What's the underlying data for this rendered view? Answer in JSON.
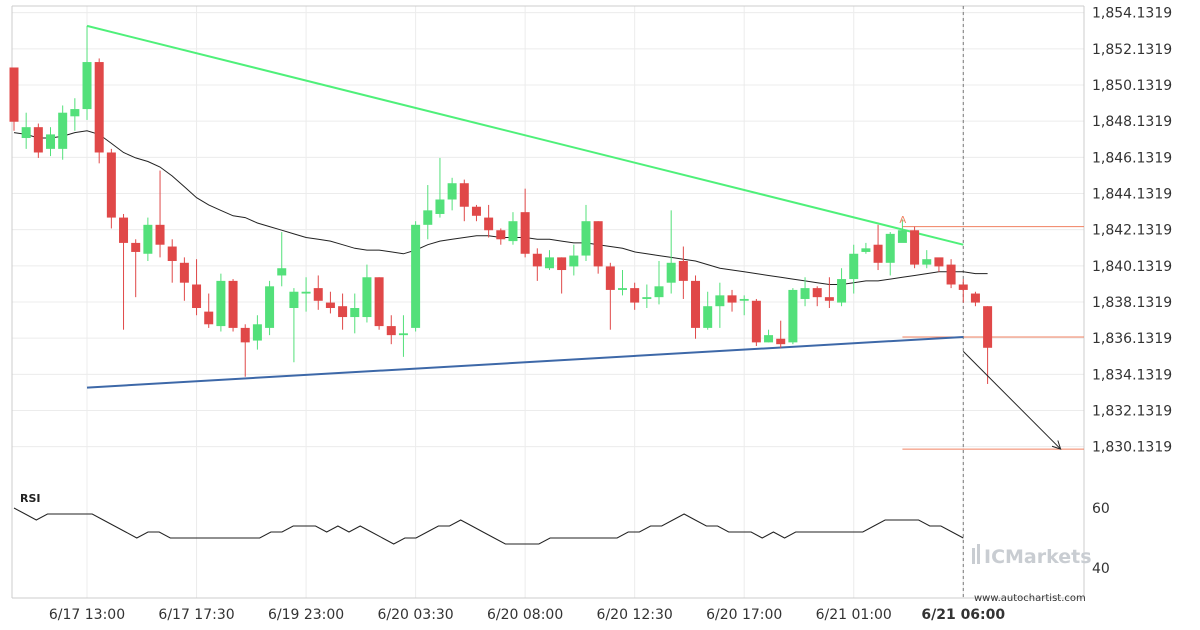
{
  "chart_data": {
    "type": "candlestick",
    "y_ticks": [
      "1,854.1319",
      "1,852.1319",
      "1,850.1319",
      "1,848.1319",
      "1,846.1319",
      "1,844.1319",
      "1,842.1319",
      "1,840.1319",
      "1,838.1319",
      "1,836.1319",
      "1,834.1319",
      "1,832.1319",
      "1,830.1319"
    ],
    "ylim": [
      1828.4,
      1854.5
    ],
    "x_ticks": [
      {
        "label": "6/17 13:00",
        "index": 6,
        "bold": false
      },
      {
        "label": "6/17 17:30",
        "index": 15,
        "bold": false
      },
      {
        "label": "6/19 23:00",
        "index": 24,
        "bold": false
      },
      {
        "label": "6/20 03:30",
        "index": 33,
        "bold": false
      },
      {
        "label": "6/20 08:00",
        "index": 42,
        "bold": false
      },
      {
        "label": "6/20 12:30",
        "index": 51,
        "bold": false
      },
      {
        "label": "6/20 17:00",
        "index": 60,
        "bold": false
      },
      {
        "label": "6/21 01:00",
        "index": 69,
        "bold": false
      },
      {
        "label": "6/21 06:00",
        "index": 78,
        "bold": true
      }
    ],
    "candles": [
      [
        1851.1,
        1848.1,
        1848.8,
        1847.6
      ],
      [
        1847.2,
        1847.8,
        1848.6,
        1846.6
      ],
      [
        1847.8,
        1846.4,
        1848.0,
        1846.1
      ],
      [
        1846.6,
        1847.4,
        1847.8,
        1846.2
      ],
      [
        1846.6,
        1848.6,
        1849.0,
        1846.0
      ],
      [
        1848.4,
        1848.8,
        1849.4,
        1847.6
      ],
      [
        1848.8,
        1851.4,
        1853.4,
        1848.2
      ],
      [
        1851.4,
        1846.4,
        1851.6,
        1845.8
      ],
      [
        1846.4,
        1842.8,
        1846.6,
        1842.2
      ],
      [
        1842.8,
        1841.4,
        1843.0,
        1836.6
      ],
      [
        1841.4,
        1840.9,
        1841.6,
        1838.4
      ],
      [
        1840.8,
        1842.4,
        1842.8,
        1840.4
      ],
      [
        1842.4,
        1841.3,
        1845.4,
        1840.6
      ],
      [
        1841.2,
        1840.4,
        1841.6,
        1839.2
      ],
      [
        1840.3,
        1839.2,
        1840.6,
        1838.2
      ],
      [
        1839.1,
        1837.8,
        1840.5,
        1837.4
      ],
      [
        1837.6,
        1836.9,
        1838.6,
        1836.7
      ],
      [
        1836.8,
        1839.3,
        1839.7,
        1836.5
      ],
      [
        1839.3,
        1836.7,
        1839.4,
        1836.5
      ],
      [
        1836.7,
        1835.9,
        1836.9,
        1834.0
      ],
      [
        1836.0,
        1836.9,
        1837.4,
        1835.5
      ],
      [
        1836.7,
        1839.0,
        1839.3,
        1836.3
      ],
      [
        1839.6,
        1840.0,
        1842.0,
        1839.0
      ],
      [
        1837.8,
        1838.7,
        1838.9,
        1834.8
      ],
      [
        1838.6,
        1838.7,
        1839.5,
        1837.6
      ],
      [
        1838.9,
        1838.2,
        1839.6,
        1837.7
      ],
      [
        1838.1,
        1837.8,
        1838.7,
        1837.5
      ],
      [
        1837.9,
        1837.3,
        1838.6,
        1836.6
      ],
      [
        1837.3,
        1837.8,
        1838.6,
        1836.4
      ],
      [
        1837.3,
        1839.5,
        1840.2,
        1837.0
      ],
      [
        1839.5,
        1836.8,
        1839.5,
        1836.6
      ],
      [
        1836.8,
        1836.3,
        1837.4,
        1835.8
      ],
      [
        1836.3,
        1836.4,
        1837.4,
        1835.1
      ],
      [
        1836.7,
        1842.4,
        1842.6,
        1836.5
      ],
      [
        1842.4,
        1843.2,
        1844.6,
        1841.6
      ],
      [
        1843.0,
        1843.8,
        1846.1,
        1842.8
      ],
      [
        1843.8,
        1844.7,
        1845.0,
        1843.2
      ],
      [
        1844.7,
        1843.4,
        1844.9,
        1842.6
      ],
      [
        1843.4,
        1842.9,
        1843.5,
        1842.6
      ],
      [
        1842.8,
        1842.1,
        1843.5,
        1841.7
      ],
      [
        1842.1,
        1841.6,
        1842.2,
        1841.3
      ],
      [
        1841.5,
        1842.6,
        1843.1,
        1841.3
      ],
      [
        1843.1,
        1840.8,
        1844.4,
        1840.6
      ],
      [
        1840.8,
        1840.1,
        1841.1,
        1839.3
      ],
      [
        1840.0,
        1840.6,
        1841.0,
        1839.9
      ],
      [
        1840.6,
        1839.9,
        1840.6,
        1838.6
      ],
      [
        1840.1,
        1840.7,
        1841.3,
        1839.6
      ],
      [
        1840.7,
        1842.6,
        1843.5,
        1840.4
      ],
      [
        1842.6,
        1840.1,
        1842.6,
        1839.7
      ],
      [
        1840.1,
        1838.8,
        1840.3,
        1836.6
      ],
      [
        1838.8,
        1838.9,
        1839.9,
        1838.5
      ],
      [
        1838.9,
        1838.1,
        1839.2,
        1837.7
      ],
      [
        1838.3,
        1838.4,
        1839.1,
        1837.8
      ],
      [
        1838.4,
        1839.0,
        1840.4,
        1838.0
      ],
      [
        1839.2,
        1840.3,
        1843.2,
        1838.6
      ],
      [
        1840.4,
        1839.3,
        1841.2,
        1838.3
      ],
      [
        1839.3,
        1836.7,
        1839.6,
        1836.1
      ],
      [
        1836.7,
        1837.9,
        1838.7,
        1836.6
      ],
      [
        1837.9,
        1838.5,
        1839.2,
        1836.7
      ],
      [
        1838.5,
        1838.1,
        1838.8,
        1837.6
      ],
      [
        1838.2,
        1838.3,
        1838.5,
        1837.4
      ],
      [
        1838.2,
        1835.9,
        1838.3,
        1835.7
      ],
      [
        1835.9,
        1836.3,
        1836.6,
        1835.9
      ],
      [
        1836.1,
        1835.8,
        1837.1,
        1835.6
      ],
      [
        1835.9,
        1838.8,
        1838.9,
        1835.8
      ],
      [
        1838.3,
        1838.9,
        1839.5,
        1837.9
      ],
      [
        1838.9,
        1838.4,
        1839.0,
        1837.9
      ],
      [
        1838.4,
        1838.2,
        1839.5,
        1837.8
      ],
      [
        1838.1,
        1839.4,
        1840.0,
        1837.9
      ],
      [
        1839.4,
        1840.8,
        1841.3,
        1838.6
      ],
      [
        1840.9,
        1841.1,
        1841.4,
        1840.8
      ],
      [
        1841.3,
        1840.3,
        1842.4,
        1839.9
      ],
      [
        1840.3,
        1841.9,
        1842.0,
        1839.6
      ],
      [
        1841.4,
        1842.1,
        1842.7,
        1841.8
      ],
      [
        1842.1,
        1840.2,
        1842.3,
        1840.0
      ],
      [
        1840.2,
        1840.5,
        1841.0,
        1840.0
      ],
      [
        1840.6,
        1840.1,
        1840.4,
        1839.8
      ],
      [
        1840.2,
        1839.1,
        1840.5,
        1838.9
      ],
      [
        1839.1,
        1838.8,
        1839.4,
        1838.1
      ],
      [
        1838.6,
        1838.1,
        1838.7,
        1837.9
      ],
      [
        1837.9,
        1835.6,
        1837.9,
        1833.6
      ]
    ],
    "moving_average": [
      1847.5,
      1847.4,
      1847.2,
      1847.2,
      1847.3,
      1847.5,
      1847.6,
      1847.4,
      1846.9,
      1846.4,
      1846.1,
      1845.9,
      1845.6,
      1845.1,
      1844.5,
      1843.9,
      1843.5,
      1843.2,
      1842.9,
      1842.8,
      1842.5,
      1842.3,
      1842.1,
      1841.9,
      1841.7,
      1841.6,
      1841.5,
      1841.3,
      1841.1,
      1841.0,
      1841.0,
      1840.9,
      1840.8,
      1841.0,
      1841.3,
      1841.5,
      1841.6,
      1841.7,
      1841.8,
      1841.8,
      1841.7,
      1841.7,
      1841.7,
      1841.6,
      1841.6,
      1841.5,
      1841.4,
      1841.4,
      1841.3,
      1841.2,
      1841.1,
      1840.9,
      1840.8,
      1840.7,
      1840.6,
      1840.5,
      1840.4,
      1840.2,
      1840.0,
      1839.9,
      1839.8,
      1839.7,
      1839.6,
      1839.5,
      1839.4,
      1839.3,
      1839.2,
      1839.1,
      1839.1,
      1839.2,
      1839.3,
      1839.3,
      1839.4,
      1839.5,
      1839.6,
      1839.7,
      1839.8,
      1839.8,
      1839.8,
      1839.7,
      1839.7
    ],
    "resistance_line": {
      "from": [
        6,
        1853.4
      ],
      "to": [
        78,
        1841.3
      ]
    },
    "support_line": {
      "from": [
        6,
        1833.4
      ],
      "to": [
        78,
        1836.2
      ]
    },
    "levels": [
      1842.3,
      1836.2,
      1830.0
    ],
    "level_start_index": 73,
    "marker": {
      "index": 73,
      "value": 1842.4,
      "label": "A"
    },
    "projection": {
      "from": [
        78,
        1835.4
      ],
      "to": [
        86,
        1830.0
      ]
    },
    "last_index": 78,
    "rsi": {
      "label": "RSI",
      "y_ticks": [
        "60",
        "40"
      ],
      "ylim": [
        30,
        70
      ],
      "values": [
        60,
        58,
        56,
        58,
        58,
        58,
        58,
        58,
        56,
        54,
        52,
        50,
        52,
        52,
        50,
        50,
        50,
        50,
        50,
        50,
        50,
        50,
        50,
        52,
        52,
        54,
        54,
        54,
        52,
        54,
        52,
        54,
        52,
        50,
        48,
        50,
        50,
        52,
        54,
        54,
        56,
        54,
        52,
        50,
        48,
        48,
        48,
        48,
        50,
        50,
        50,
        50,
        50,
        50,
        50,
        52,
        52,
        54,
        54,
        56,
        58,
        56,
        54,
        54,
        52,
        52,
        52,
        50,
        52,
        50,
        52,
        52,
        52,
        52,
        52,
        52,
        52,
        54,
        56,
        56,
        56,
        56,
        54,
        54,
        52,
        50
      ]
    },
    "watermark": "ICMarkets",
    "site_label": "www.autochartist.com"
  },
  "colors": {
    "up": "#53e07a",
    "down": "#e04848",
    "ma": "#222222",
    "resistance": "#4ff07a",
    "support": "#3d68a8",
    "level": "#f08060",
    "grid": "#ececec",
    "axis_border": "#cccccc",
    "projection": "#222222"
  }
}
